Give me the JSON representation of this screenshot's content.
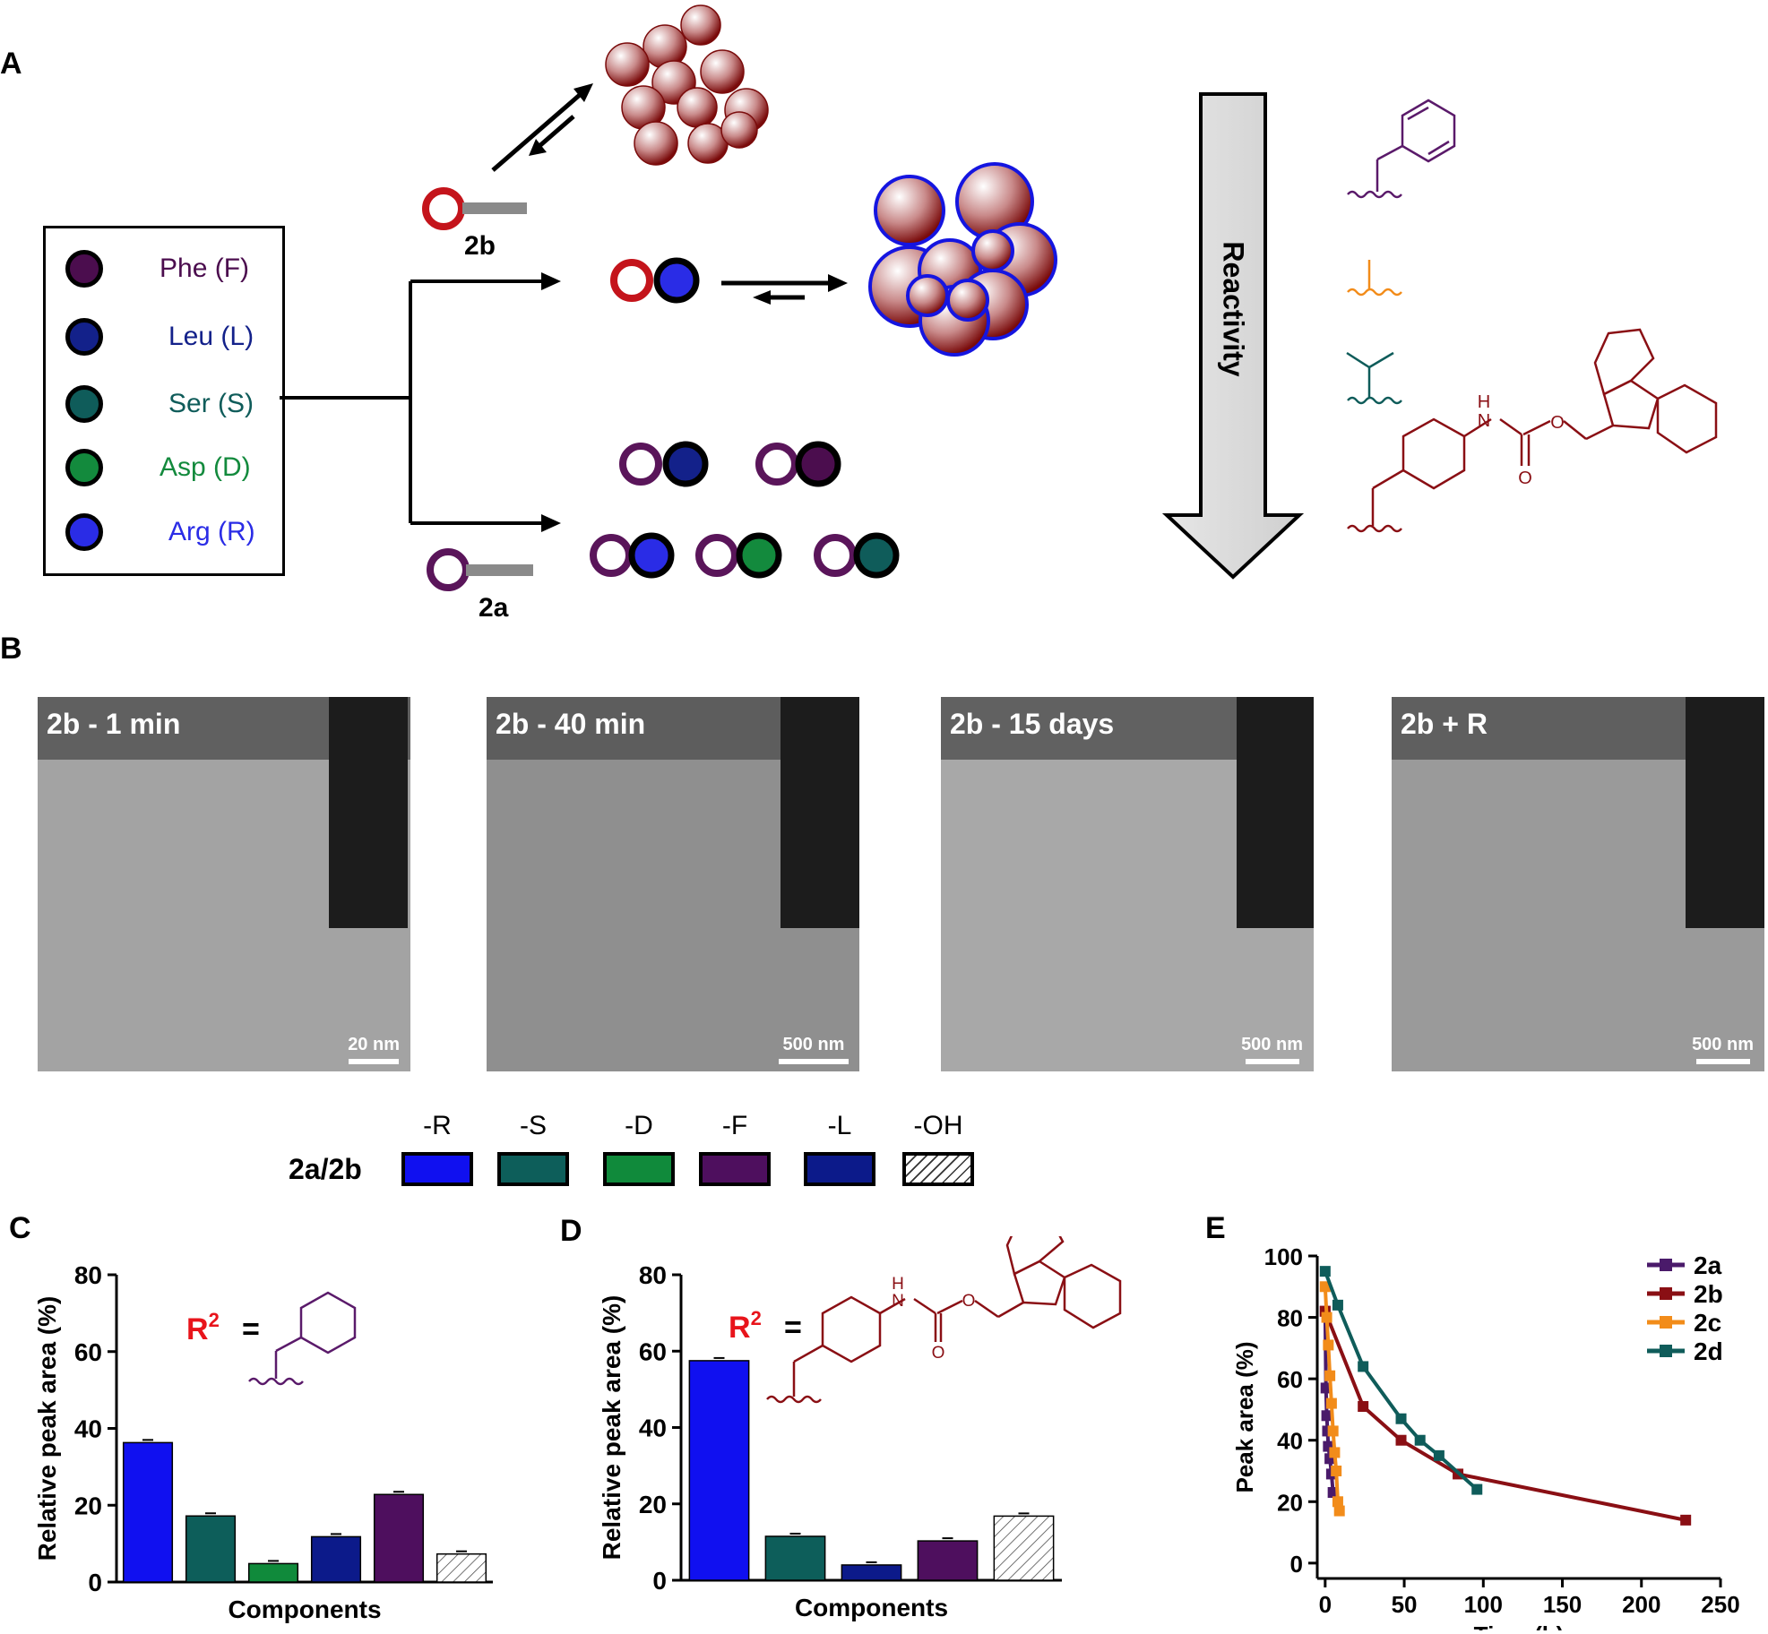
{
  "panels": {
    "A": "A",
    "B": "B",
    "C": "C",
    "D": "D",
    "E": "E"
  },
  "panelA": {
    "legend": [
      {
        "label": "Phe (F)",
        "fill": "#4b0d4e",
        "text_color": "#4b0d4e"
      },
      {
        "label": "Leu (L)",
        "fill": "#13218a",
        "text_color": "#13218a"
      },
      {
        "label": "Ser (S)",
        "fill": "#0f5c5a",
        "text_color": "#0f5c5a"
      },
      {
        "label": "Asp (D)",
        "fill": "#138a3d",
        "text_color": "#138a3d"
      },
      {
        "label": "Arg (R)",
        "fill": "#2a2ce6",
        "text_color": "#2a2ce6"
      }
    ],
    "label_2b": "2b",
    "label_2a": "2a",
    "reactivity": "Reactivity"
  },
  "panelB": {
    "images": [
      {
        "title": "2b - 1 min",
        "scale": "20 nm"
      },
      {
        "title": "2b - 40 min",
        "scale": "500 nm"
      },
      {
        "title": "2b - 15 days",
        "scale": "500 nm"
      },
      {
        "title": "2b + R",
        "scale": "500 nm"
      }
    ]
  },
  "swatch_legend": {
    "row_label": "2a/2b",
    "items": [
      {
        "label": "-R",
        "color": "#1010f0"
      },
      {
        "label": "-S",
        "color": "#0d5e5a"
      },
      {
        "label": "-D",
        "color": "#108a3b"
      },
      {
        "label": "-F",
        "color": "#4e0f5e"
      },
      {
        "label": "-L",
        "color": "#0c1a8a"
      },
      {
        "label": "-OH",
        "color": "hatched"
      }
    ]
  },
  "r2_label": "R",
  "r2_sup": "2",
  "r2_eq": "=",
  "chart_data": [
    {
      "type": "bar",
      "panel": "C",
      "categories": [
        "-R",
        "-S",
        "-D",
        "-L",
        "-F",
        "-OH"
      ],
      "values": [
        36.3,
        17.2,
        4.8,
        11.8,
        22.8,
        7.3
      ],
      "colors": [
        "#1010f0",
        "#0d5e5a",
        "#108a3b",
        "#0c1a8a",
        "#4e0f5e",
        "hatched"
      ],
      "xlabel": "Components",
      "ylabel": "Relative peak area (%)",
      "ylim": [
        0,
        80
      ],
      "yticks": [
        "0",
        "20",
        "40",
        "60",
        "80"
      ]
    },
    {
      "type": "bar",
      "panel": "D",
      "categories": [
        "-R",
        "-S",
        "-L",
        "-F",
        "-OH"
      ],
      "values": [
        57.5,
        11.5,
        4.0,
        10.3,
        16.8
      ],
      "colors": [
        "#1010f0",
        "#0d5e5a",
        "#0c1a8a",
        "#4e0f5e",
        "hatched"
      ],
      "xlabel": "Components",
      "ylabel": "Relative peak area (%)",
      "ylim": [
        0,
        80
      ],
      "yticks": [
        "0",
        "20",
        "40",
        "60",
        "80"
      ]
    },
    {
      "type": "line",
      "panel": "E",
      "xlabel": "Time (h)",
      "ylabel": "Peak area (%)",
      "xlim": [
        -5,
        250
      ],
      "ylim": [
        -5,
        100
      ],
      "xticks": [
        "0",
        "50",
        "100",
        "150",
        "200",
        "250"
      ],
      "yticks": [
        "0",
        "20",
        "40",
        "60",
        "80",
        "100"
      ],
      "legend_position": "top-right",
      "series": [
        {
          "name": "2a",
          "color": "#4a1a6a",
          "x": [
            0,
            0.5,
            1,
            1.5,
            2,
            3,
            4,
            5
          ],
          "y": [
            82,
            57,
            48,
            43,
            38,
            34,
            29,
            23
          ]
        },
        {
          "name": "2b",
          "color": "#8a0f14",
          "x": [
            0,
            24,
            48,
            84,
            228
          ],
          "y": [
            82,
            51,
            40,
            29,
            14
          ]
        },
        {
          "name": "2c",
          "color": "#f28c1a",
          "x": [
            0,
            1,
            2,
            3,
            4,
            5,
            6,
            7,
            8,
            9
          ],
          "y": [
            90,
            80,
            71,
            61,
            52,
            43,
            36,
            30,
            20,
            17
          ]
        },
        {
          "name": "2d",
          "color": "#0f5c5a",
          "x": [
            0,
            8,
            24,
            48,
            60,
            72,
            96
          ],
          "y": [
            95,
            84,
            64,
            47,
            40,
            35,
            24
          ]
        }
      ]
    }
  ]
}
